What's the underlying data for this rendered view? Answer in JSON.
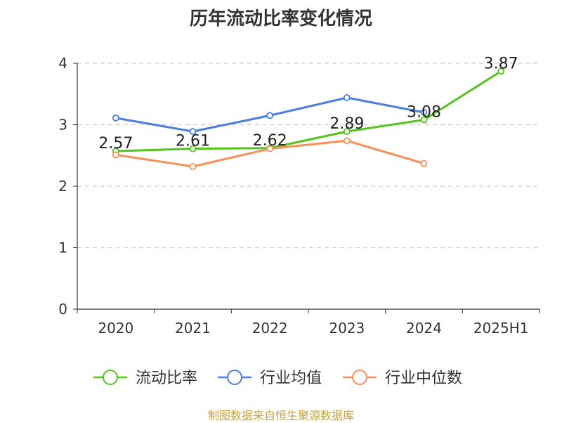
{
  "title": "历年流动比率变化情况",
  "footer": "制图数据来自恒生聚源数据库",
  "colors": {
    "current_ratio": "#52c41a",
    "industry_mean": "#4a7fdb",
    "industry_median": "#f79057",
    "footer": "#c8a13a",
    "axis": "#333333",
    "grid": "#cccccc"
  },
  "chart_data": {
    "type": "line",
    "title": "历年流动比率变化情况",
    "categories": [
      "2020",
      "2021",
      "2022",
      "2023",
      "2024",
      "2025H1"
    ],
    "ylim": [
      0,
      4
    ],
    "yticks": [
      "0",
      "1",
      "2",
      "3",
      "4"
    ],
    "grid": true,
    "legend_position": "bottom",
    "series": [
      {
        "name": "流动比率",
        "color": "#52c41a",
        "values": [
          2.57,
          2.61,
          2.62,
          2.89,
          3.08,
          3.87
        ],
        "labels": [
          "2.57",
          "2.61",
          "2.62",
          "2.89",
          "3.08",
          "3.87"
        ]
      },
      {
        "name": "行业均值",
        "color": "#4a7fdb",
        "values": [
          3.11,
          2.89,
          3.15,
          3.44,
          3.2,
          null
        ]
      },
      {
        "name": "行业中位数",
        "color": "#f79057",
        "values": [
          2.51,
          2.32,
          2.61,
          2.74,
          2.37,
          null
        ]
      }
    ]
  }
}
